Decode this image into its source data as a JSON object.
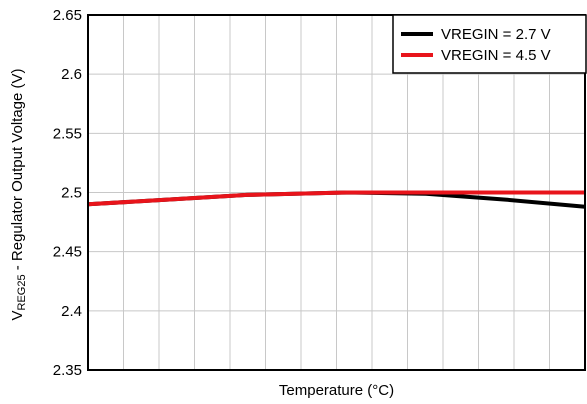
{
  "chart_data": {
    "type": "line",
    "title": "",
    "xlabel": "Temperature (°C)",
    "ylabel_main": "V",
    "ylabel_sub": "REG25",
    "ylabel_rest": " - Regulator Output Voltage (V)",
    "xlim": [
      -40,
      85
    ],
    "ylim": [
      2.35,
      2.65
    ],
    "yticks": [
      "2.35",
      "2.4",
      "2.45",
      "2.5",
      "2.55",
      "2.6",
      "2.65"
    ],
    "grid": true,
    "legend_position": "top-right",
    "series": [
      {
        "name": "VREGIN = 2.7 V",
        "color": "#000000",
        "x": [
          -40,
          -20,
          0,
          25,
          45,
          65,
          85
        ],
        "y": [
          2.49,
          2.494,
          2.498,
          2.5,
          2.499,
          2.494,
          2.488
        ]
      },
      {
        "name": "VREGIN = 4.5 V",
        "color": "#e8141b",
        "x": [
          -40,
          -20,
          0,
          25,
          45,
          65,
          85
        ],
        "y": [
          2.49,
          2.494,
          2.498,
          2.5,
          2.5,
          2.5,
          2.5
        ]
      }
    ]
  }
}
